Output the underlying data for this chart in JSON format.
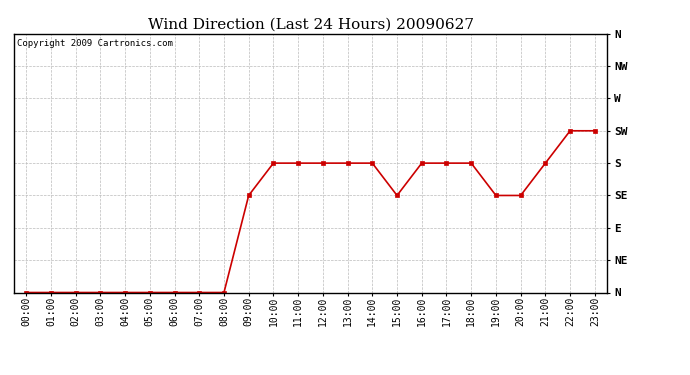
{
  "title": "Wind Direction (Last 24 Hours) 20090627",
  "copyright_text": "Copyright 2009 Cartronics.com",
  "line_color": "#cc0000",
  "marker": "s",
  "marker_size": 3,
  "background_color": "#ffffff",
  "grid_color": "#bbbbbb",
  "hours": [
    0,
    1,
    2,
    3,
    4,
    5,
    6,
    7,
    8,
    9,
    10,
    11,
    12,
    13,
    14,
    15,
    16,
    17,
    18,
    19,
    20,
    21,
    22,
    23
  ],
  "wind_values": [
    0,
    0,
    0,
    0,
    0,
    0,
    0,
    0,
    0,
    135,
    180,
    180,
    180,
    180,
    180,
    135,
    180,
    180,
    180,
    135,
    135,
    180,
    225,
    225
  ],
  "y_ticks": [
    0,
    45,
    90,
    135,
    180,
    225,
    270,
    315,
    360
  ],
  "y_labels": [
    "N",
    "NE",
    "E",
    "SE",
    "S",
    "SW",
    "W",
    "NW",
    "N"
  ],
  "ylim": [
    0,
    360
  ],
  "title_fontsize": 11,
  "tick_fontsize": 7,
  "label_fontsize": 8,
  "copyright_fontsize": 6.5
}
